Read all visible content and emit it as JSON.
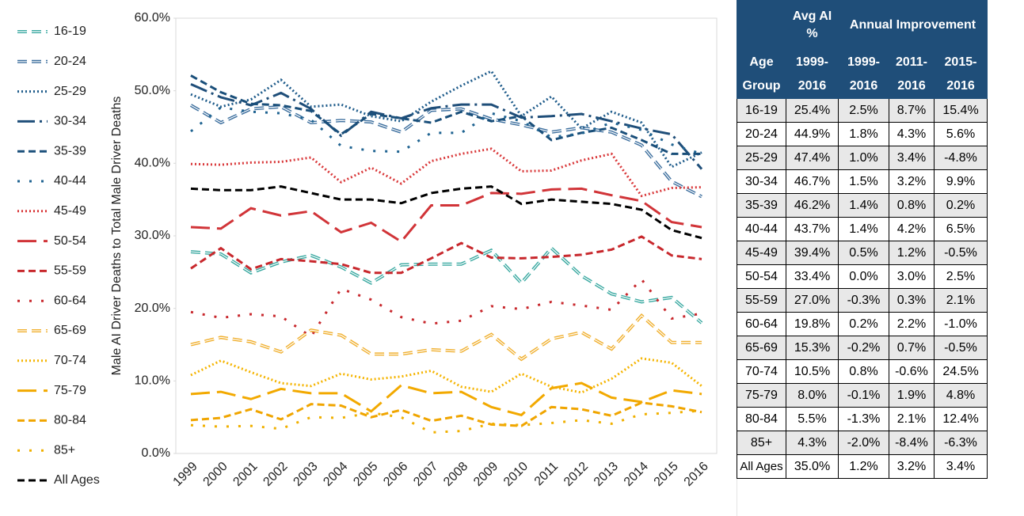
{
  "chart_data": {
    "type": "line",
    "y_label": "Male AI Driver Deaths to Total Male Driver Deaths",
    "categories": [
      "1999",
      "2000",
      "2001",
      "2002",
      "2003",
      "2004",
      "2005",
      "2006",
      "2007",
      "2008",
      "2009",
      "2010",
      "2011",
      "2012",
      "2013",
      "2014",
      "2015",
      "2016"
    ],
    "ylim": [
      0,
      60
    ],
    "yticks": [
      {
        "value": 0,
        "label": "0.0%"
      },
      {
        "value": 10,
        "label": "10.0%"
      },
      {
        "value": 20,
        "label": "20.0%"
      },
      {
        "value": 30,
        "label": "30.0%"
      },
      {
        "value": 40,
        "label": "40.0%"
      },
      {
        "value": 50,
        "label": "50.0%"
      },
      {
        "value": 60,
        "label": "60.0%"
      }
    ],
    "legend": "left",
    "series": [
      {
        "name": "16-19",
        "color": "#3aa9a1",
        "dash": "outline",
        "values": [
          27.8,
          27.5,
          24.9,
          26.4,
          27.3,
          25.7,
          23.5,
          26.0,
          26.1,
          26.1,
          28.0,
          23.5,
          28.3,
          24.5,
          22.0,
          20.9,
          21.5,
          18.0
        ]
      },
      {
        "name": "20-24",
        "color": "#3d6f9e",
        "dash": "outline",
        "values": [
          48.0,
          45.6,
          47.5,
          47.8,
          45.6,
          45.9,
          45.7,
          44.3,
          47.3,
          47.5,
          46.1,
          45.3,
          44.3,
          44.9,
          44.3,
          42.5,
          37.5,
          35.4
        ]
      },
      {
        "name": "25-29",
        "color": "#1f5c8b",
        "dash": "dot",
        "values": [
          49.5,
          47.8,
          48.8,
          51.5,
          47.8,
          48.1,
          46.5,
          45.8,
          48.5,
          50.7,
          52.7,
          46.5,
          49.2,
          44.8,
          47.1,
          45.6,
          39.5,
          41.5
        ]
      },
      {
        "name": "30-34",
        "color": "#1f4e79",
        "dash": "dashdot",
        "values": [
          50.9,
          49.1,
          48.0,
          49.7,
          47.5,
          43.8,
          47.1,
          46.2,
          47.6,
          48.1,
          48.1,
          46.3,
          46.5,
          46.8,
          45.8,
          44.8,
          44.0,
          39.2
        ]
      },
      {
        "name": "35-39",
        "color": "#1a4f7a",
        "dash": "dash",
        "values": [
          52.1,
          49.8,
          48.2,
          48.0,
          47.2,
          44.0,
          46.8,
          46.2,
          45.6,
          47.1,
          45.8,
          46.5,
          43.2,
          44.2,
          44.9,
          43.2,
          41.3,
          41.3
        ]
      },
      {
        "name": "40-44",
        "color": "#1f6391",
        "dash": "sparsedot",
        "values": [
          44.4,
          47.7,
          47.1,
          46.9,
          46.0,
          42.4,
          41.7,
          41.6,
          44.2,
          44.2,
          46.9,
          45.8,
          43.6,
          44.1,
          45.6,
          44.6,
          42.6,
          41.3
        ]
      },
      {
        "name": "45-49",
        "color": "#d9383a",
        "dash": "dot",
        "values": [
          39.9,
          39.8,
          40.1,
          40.2,
          40.8,
          37.4,
          39.4,
          37.2,
          40.3,
          41.3,
          42.0,
          38.9,
          39.0,
          40.4,
          41.3,
          35.5,
          36.6,
          36.7
        ]
      },
      {
        "name": "50-54",
        "color": "#d13438",
        "dash": "longdash",
        "values": [
          31.2,
          31.0,
          33.8,
          32.8,
          33.4,
          30.5,
          31.8,
          29.2,
          34.2,
          34.2,
          35.9,
          35.8,
          36.4,
          36.5,
          35.6,
          34.8,
          31.9,
          31.2
        ]
      },
      {
        "name": "55-59",
        "color": "#c8282d",
        "dash": "dash",
        "values": [
          25.5,
          28.3,
          25.4,
          26.8,
          26.5,
          26.1,
          24.9,
          24.9,
          26.9,
          29.0,
          27.0,
          26.9,
          27.1,
          27.4,
          28.1,
          29.9,
          27.3,
          26.8
        ]
      },
      {
        "name": "60-64",
        "color": "#c8282d",
        "dash": "sparsedot",
        "values": [
          19.5,
          18.7,
          19.2,
          18.9,
          16.1,
          22.7,
          21.2,
          18.8,
          17.9,
          18.3,
          20.3,
          19.9,
          20.9,
          20.4,
          19.8,
          24.0,
          18.6,
          19.3
        ]
      },
      {
        "name": "65-69",
        "color": "#f0b030",
        "dash": "outline",
        "values": [
          15.0,
          16.0,
          15.4,
          14.0,
          17.0,
          16.3,
          13.7,
          13.7,
          14.3,
          14.1,
          16.4,
          13.0,
          15.8,
          16.7,
          14.4,
          19.0,
          15.3,
          15.3
        ]
      },
      {
        "name": "70-74",
        "color": "#f5b400",
        "dash": "dot",
        "values": [
          10.8,
          12.8,
          11.2,
          9.7,
          9.3,
          11.0,
          10.2,
          10.6,
          11.4,
          9.2,
          8.5,
          11.0,
          9.2,
          8.4,
          10.3,
          13.1,
          12.5,
          9.3
        ]
      },
      {
        "name": "75-79",
        "color": "#f2a900",
        "dash": "longdash",
        "values": [
          8.2,
          8.5,
          7.5,
          8.9,
          8.3,
          8.3,
          5.8,
          9.4,
          8.3,
          8.5,
          6.4,
          5.3,
          9.0,
          9.7,
          7.7,
          7.1,
          8.7,
          8.2
        ]
      },
      {
        "name": "80-84",
        "color": "#f0a500",
        "dash": "dash",
        "values": [
          4.6,
          4.9,
          6.1,
          4.7,
          6.8,
          6.6,
          5.0,
          6.0,
          4.5,
          5.2,
          4.0,
          3.8,
          6.4,
          6.1,
          5.2,
          7.0,
          6.5,
          5.7
        ]
      },
      {
        "name": "85+",
        "color": "#f0b000",
        "dash": "sparsedot",
        "values": [
          3.9,
          3.7,
          3.8,
          3.4,
          5.0,
          4.9,
          5.6,
          5.0,
          2.9,
          3.1,
          4.1,
          3.9,
          4.2,
          4.6,
          4.1,
          5.4,
          5.6,
          5.9
        ]
      },
      {
        "name": "All Ages",
        "color": "#000000",
        "dash": "dash",
        "values": [
          36.5,
          36.3,
          36.3,
          36.8,
          35.9,
          35.0,
          35.0,
          34.5,
          35.9,
          36.5,
          36.8,
          34.4,
          35.0,
          34.7,
          34.4,
          33.6,
          30.8,
          29.7
        ]
      }
    ]
  },
  "table": {
    "top_header": [
      "Avg AI %",
      "Annual Improvement"
    ],
    "columns": [
      "Age Group",
      "1999-2016",
      "1999-2016",
      "2011-2016",
      "2015-2016"
    ],
    "rows": [
      [
        "16-19",
        "25.4%",
        "2.5%",
        "8.7%",
        "15.4%"
      ],
      [
        "20-24",
        "44.9%",
        "1.8%",
        "4.3%",
        "5.6%"
      ],
      [
        "25-29",
        "47.4%",
        "1.0%",
        "3.4%",
        "-4.8%"
      ],
      [
        "30-34",
        "46.7%",
        "1.5%",
        "3.2%",
        "9.9%"
      ],
      [
        "35-39",
        "46.2%",
        "1.4%",
        "0.8%",
        "0.2%"
      ],
      [
        "40-44",
        "43.7%",
        "1.4%",
        "4.2%",
        "6.5%"
      ],
      [
        "45-49",
        "39.4%",
        "0.5%",
        "1.2%",
        "-0.5%"
      ],
      [
        "50-54",
        "33.4%",
        "0.0%",
        "3.0%",
        "2.5%"
      ],
      [
        "55-59",
        "27.0%",
        "-0.3%",
        "0.3%",
        "2.1%"
      ],
      [
        "60-64",
        "19.8%",
        "0.2%",
        "2.2%",
        "-1.0%"
      ],
      [
        "65-69",
        "15.3%",
        "-0.2%",
        "0.7%",
        "-0.5%"
      ],
      [
        "70-74",
        "10.5%",
        "0.8%",
        "-0.6%",
        "24.5%"
      ],
      [
        "75-79",
        "8.0%",
        "-0.1%",
        "1.9%",
        "4.8%"
      ],
      [
        "80-84",
        "5.5%",
        "-1.3%",
        "2.1%",
        "12.4%"
      ],
      [
        "85+",
        "4.3%",
        "-2.0%",
        "-8.4%",
        "-6.3%"
      ],
      [
        "All Ages",
        "35.0%",
        "1.2%",
        "3.2%",
        "3.4%"
      ]
    ]
  }
}
